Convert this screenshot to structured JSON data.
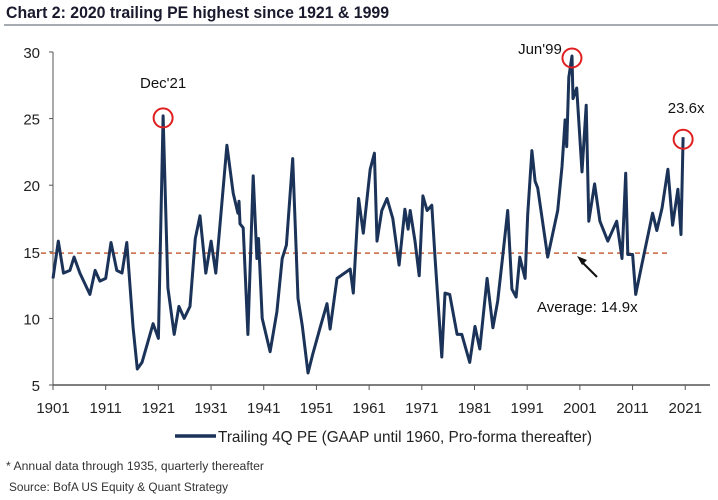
{
  "chart_data": {
    "type": "line",
    "title": "Chart 2: 2020 trailing PE highest since 1921 & 1999",
    "xlabel": "",
    "ylabel": "",
    "xlim": [
      1901,
      2025.7
    ],
    "ylim": [
      5,
      30
    ],
    "x_ticks": [
      "1901",
      "1911",
      "1921",
      "1931",
      "1941",
      "1951",
      "1961",
      "1971",
      "1981",
      "1991",
      "2001",
      "2011",
      "2021"
    ],
    "y_ticks": [
      "5",
      "10",
      "15",
      "20",
      "25",
      "30"
    ],
    "grid": false,
    "legend_position": "bottom",
    "series": [
      {
        "name": "Trailing 4Q PE (GAAP until 1960, Pro-forma thereafter)",
        "color": "#1b3358",
        "points": [
          [
            1901,
            13.0
          ],
          [
            1902,
            15.8
          ],
          [
            1903,
            13.4
          ],
          [
            1904.2,
            13.6
          ],
          [
            1905,
            14.6
          ],
          [
            1906.1,
            13.4
          ],
          [
            1908,
            11.8
          ],
          [
            1909,
            13.6
          ],
          [
            1909.9,
            12.8
          ],
          [
            1911,
            13.0
          ],
          [
            1912,
            15.7
          ],
          [
            1913.1,
            13.6
          ],
          [
            1914.1,
            13.4
          ],
          [
            1915,
            15.7
          ],
          [
            1916.2,
            9.3
          ],
          [
            1917,
            6.2
          ],
          [
            1917.9,
            6.7
          ],
          [
            1920,
            9.6
          ],
          [
            1921,
            8.5
          ],
          [
            1921.9,
            25.2
          ],
          [
            1922.8,
            12.3
          ],
          [
            1924,
            8.8
          ],
          [
            1924.9,
            10.9
          ],
          [
            1925.9,
            10.0
          ],
          [
            1927,
            10.9
          ],
          [
            1928,
            16.0
          ],
          [
            1928.9,
            17.7
          ],
          [
            1930,
            13.4
          ],
          [
            1931,
            15.8
          ],
          [
            1931.9,
            13.4
          ],
          [
            1934,
            23.0
          ],
          [
            1935.2,
            19.4
          ],
          [
            1936.1,
            17.9
          ],
          [
            1936.3,
            18.8
          ],
          [
            1936.5,
            17.1
          ],
          [
            1937.1,
            16.8
          ],
          [
            1938,
            8.8
          ],
          [
            1939,
            20.7
          ],
          [
            1939.7,
            14.5
          ],
          [
            1940,
            16.0
          ],
          [
            1940.7,
            10.0
          ],
          [
            1942.2,
            7.5
          ],
          [
            1943.5,
            10.5
          ],
          [
            1944.5,
            14.5
          ],
          [
            1945.3,
            15.5
          ],
          [
            1946.5,
            22.0
          ],
          [
            1947.5,
            11.5
          ],
          [
            1948.3,
            9.5
          ],
          [
            1949.4,
            5.9
          ],
          [
            1950.3,
            7.3
          ],
          [
            1951.7,
            9.3
          ],
          [
            1953,
            11.1
          ],
          [
            1953.6,
            9.2
          ],
          [
            1954.9,
            13.0
          ],
          [
            1957.4,
            13.7
          ],
          [
            1958,
            11.9
          ],
          [
            1959,
            19.0
          ],
          [
            1959.9,
            16.4
          ],
          [
            1961.2,
            21.2
          ],
          [
            1962,
            22.4
          ],
          [
            1962.5,
            15.8
          ],
          [
            1963.4,
            18.1
          ],
          [
            1964.4,
            19.0
          ],
          [
            1965.5,
            17.5
          ],
          [
            1966.7,
            14.0
          ],
          [
            1967.8,
            18.2
          ],
          [
            1968.4,
            16.7
          ],
          [
            1968.8,
            18.1
          ],
          [
            1969.7,
            15.8
          ],
          [
            1970.5,
            13.2
          ],
          [
            1971.2,
            19.2
          ],
          [
            1972,
            18.1
          ],
          [
            1972.9,
            18.5
          ],
          [
            1973.5,
            14.6
          ],
          [
            1974.8,
            7.1
          ],
          [
            1975.4,
            11.9
          ],
          [
            1976.3,
            11.8
          ],
          [
            1977.7,
            8.8
          ],
          [
            1978.6,
            8.8
          ],
          [
            1980.1,
            6.7
          ],
          [
            1981.1,
            9.4
          ],
          [
            1982,
            7.7
          ],
          [
            1983.4,
            13.0
          ],
          [
            1984.5,
            9.3
          ],
          [
            1985.4,
            11.3
          ],
          [
            1986.4,
            14.8
          ],
          [
            1987.3,
            18.1
          ],
          [
            1988.1,
            12.2
          ],
          [
            1988.9,
            11.6
          ],
          [
            1989.6,
            14.6
          ],
          [
            1990.6,
            13.0
          ],
          [
            1991.1,
            17.8
          ],
          [
            1991.9,
            22.6
          ],
          [
            1992.5,
            20.3
          ],
          [
            1993,
            19.8
          ],
          [
            1994.9,
            14.6
          ],
          [
            1996.8,
            18.1
          ],
          [
            1997.6,
            21.4
          ],
          [
            1998.2,
            24.9
          ],
          [
            1998.5,
            22.9
          ],
          [
            1998.9,
            28.1
          ],
          [
            1999.5,
            29.7
          ],
          [
            1999.7,
            26.5
          ],
          [
            2000.4,
            27.3
          ],
          [
            2001.4,
            21.0
          ],
          [
            2002.2,
            26.0
          ],
          [
            2002.7,
            17.3
          ],
          [
            2003.8,
            20.1
          ],
          [
            2004.8,
            17.3
          ],
          [
            2006.3,
            15.8
          ],
          [
            2008,
            17.3
          ],
          [
            2009,
            14.5
          ],
          [
            2009.7,
            20.9
          ],
          [
            2010.1,
            14.8
          ],
          [
            2011,
            14.8
          ],
          [
            2011.6,
            11.8
          ],
          [
            2012.8,
            14.1
          ],
          [
            2014.8,
            17.9
          ],
          [
            2015.6,
            16.6
          ],
          [
            2016.6,
            18.3
          ],
          [
            2017.7,
            21.2
          ],
          [
            2018.6,
            17.0
          ],
          [
            2019.6,
            19.7
          ],
          [
            2020.2,
            16.3
          ],
          [
            2020.6,
            23.6
          ]
        ]
      }
    ],
    "average": {
      "value": 14.9,
      "label": "Average: 14.9x",
      "color": "#c8643c"
    },
    "annotations": [
      {
        "label": "Dec'21",
        "x": 1921.9,
        "y": 25.2
      },
      {
        "label": "Jun'99",
        "x": 1999.5,
        "y": 29.7
      },
      {
        "label": "23.6x",
        "x": 2020.6,
        "y": 23.6
      }
    ],
    "highlight_color": "#e02020",
    "footnotes": [
      "* Annual data through 1935, quarterly thereafter",
      "Source: BofA US Equity & Quant Strategy"
    ]
  }
}
